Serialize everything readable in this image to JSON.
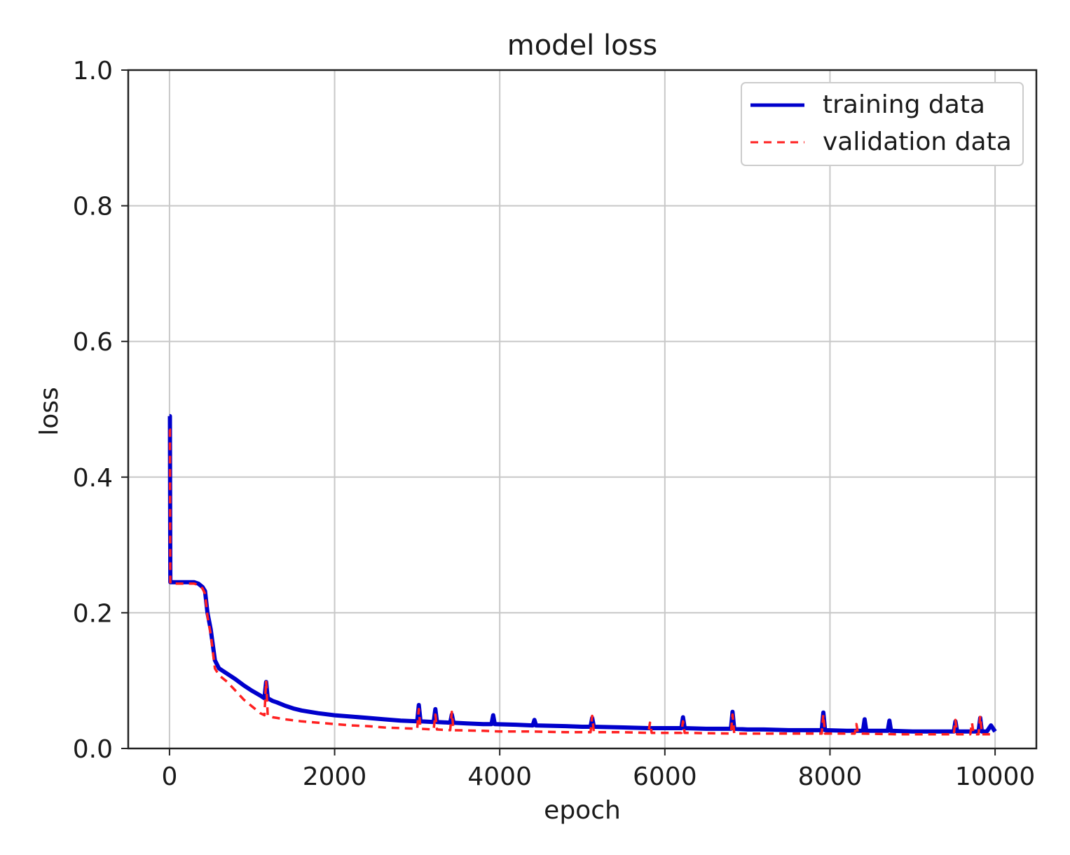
{
  "chart_data": {
    "type": "line",
    "title": "model loss",
    "xlabel": "epoch",
    "ylabel": "loss",
    "xlim": [
      -500,
      10500
    ],
    "ylim": [
      0.0,
      1.0
    ],
    "x_ticks": [
      0,
      2000,
      4000,
      6000,
      8000,
      10000
    ],
    "x_tick_labels": [
      "0",
      "2000",
      "4000",
      "6000",
      "8000",
      "10000"
    ],
    "y_ticks": [
      0.0,
      0.2,
      0.4,
      0.6,
      0.8,
      1.0
    ],
    "y_tick_labels": [
      "0.0",
      "0.2",
      "0.4",
      "0.6",
      "0.8",
      "1.0"
    ],
    "grid": true,
    "legend_position": "top-right",
    "series": [
      {
        "name": "training data",
        "color": "#0000cc",
        "style": "solid",
        "points": [
          [
            0,
            0.49
          ],
          [
            5,
            0.49
          ],
          [
            10,
            0.245
          ],
          [
            100,
            0.245
          ],
          [
            200,
            0.245
          ],
          [
            300,
            0.245
          ],
          [
            350,
            0.243
          ],
          [
            400,
            0.238
          ],
          [
            430,
            0.232
          ],
          [
            460,
            0.2
          ],
          [
            500,
            0.175
          ],
          [
            550,
            0.13
          ],
          [
            600,
            0.118
          ],
          [
            700,
            0.11
          ],
          [
            800,
            0.102
          ],
          [
            900,
            0.093
          ],
          [
            1000,
            0.085
          ],
          [
            1100,
            0.078
          ],
          [
            1150,
            0.074
          ],
          [
            1170,
            0.098
          ],
          [
            1190,
            0.074
          ],
          [
            1250,
            0.07
          ],
          [
            1300,
            0.068
          ],
          [
            1400,
            0.063
          ],
          [
            1500,
            0.059
          ],
          [
            1600,
            0.056
          ],
          [
            1800,
            0.052
          ],
          [
            2000,
            0.049
          ],
          [
            2200,
            0.047
          ],
          [
            2400,
            0.045
          ],
          [
            2600,
            0.043
          ],
          [
            2800,
            0.041
          ],
          [
            3000,
            0.04
          ],
          [
            3020,
            0.064
          ],
          [
            3040,
            0.04
          ],
          [
            3200,
            0.039
          ],
          [
            3220,
            0.058
          ],
          [
            3240,
            0.039
          ],
          [
            3400,
            0.038
          ],
          [
            3420,
            0.05
          ],
          [
            3440,
            0.038
          ],
          [
            3600,
            0.037
          ],
          [
            3800,
            0.036
          ],
          [
            3900,
            0.036
          ],
          [
            3920,
            0.049
          ],
          [
            3940,
            0.036
          ],
          [
            4200,
            0.035
          ],
          [
            4400,
            0.034
          ],
          [
            4420,
            0.042
          ],
          [
            4440,
            0.034
          ],
          [
            4800,
            0.033
          ],
          [
            5000,
            0.032
          ],
          [
            5100,
            0.032
          ],
          [
            5120,
            0.045
          ],
          [
            5140,
            0.032
          ],
          [
            5500,
            0.031
          ],
          [
            5800,
            0.03
          ],
          [
            6000,
            0.03
          ],
          [
            6200,
            0.03
          ],
          [
            6220,
            0.046
          ],
          [
            6240,
            0.03
          ],
          [
            6500,
            0.029
          ],
          [
            6800,
            0.029
          ],
          [
            6820,
            0.054
          ],
          [
            6840,
            0.029
          ],
          [
            7000,
            0.028
          ],
          [
            7200,
            0.028
          ],
          [
            7500,
            0.027
          ],
          [
            7900,
            0.027
          ],
          [
            7920,
            0.053
          ],
          [
            7940,
            0.027
          ],
          [
            8200,
            0.026
          ],
          [
            8400,
            0.026
          ],
          [
            8420,
            0.043
          ],
          [
            8440,
            0.026
          ],
          [
            8700,
            0.026
          ],
          [
            8720,
            0.041
          ],
          [
            8740,
            0.026
          ],
          [
            9000,
            0.025
          ],
          [
            9200,
            0.025
          ],
          [
            9500,
            0.025
          ],
          [
            9520,
            0.04
          ],
          [
            9540,
            0.025
          ],
          [
            9800,
            0.025
          ],
          [
            9820,
            0.045
          ],
          [
            9840,
            0.025
          ],
          [
            9900,
            0.025
          ],
          [
            9950,
            0.034
          ],
          [
            10000,
            0.025
          ]
        ]
      },
      {
        "name": "validation data",
        "color": "#ff2020",
        "style": "dashed",
        "points": [
          [
            0,
            0.47
          ],
          [
            5,
            0.47
          ],
          [
            10,
            0.243
          ],
          [
            100,
            0.243
          ],
          [
            200,
            0.243
          ],
          [
            300,
            0.243
          ],
          [
            350,
            0.241
          ],
          [
            400,
            0.236
          ],
          [
            430,
            0.228
          ],
          [
            460,
            0.195
          ],
          [
            500,
            0.168
          ],
          [
            550,
            0.118
          ],
          [
            600,
            0.108
          ],
          [
            700,
            0.098
          ],
          [
            800,
            0.085
          ],
          [
            900,
            0.072
          ],
          [
            1000,
            0.062
          ],
          [
            1100,
            0.052
          ],
          [
            1150,
            0.049
          ],
          [
            1170,
            0.1
          ],
          [
            1190,
            0.048
          ],
          [
            1250,
            0.046
          ],
          [
            1300,
            0.045
          ],
          [
            1400,
            0.043
          ],
          [
            1600,
            0.04
          ],
          [
            1800,
            0.038
          ],
          [
            2000,
            0.036
          ],
          [
            2200,
            0.034
          ],
          [
            2400,
            0.033
          ],
          [
            2600,
            0.031
          ],
          [
            2800,
            0.03
          ],
          [
            3000,
            0.029
          ],
          [
            3020,
            0.058
          ],
          [
            3040,
            0.029
          ],
          [
            3200,
            0.028
          ],
          [
            3220,
            0.05
          ],
          [
            3240,
            0.028
          ],
          [
            3400,
            0.027
          ],
          [
            3420,
            0.054
          ],
          [
            3440,
            0.027
          ],
          [
            3800,
            0.026
          ],
          [
            4000,
            0.025
          ],
          [
            4400,
            0.025
          ],
          [
            4800,
            0.024
          ],
          [
            5100,
            0.024
          ],
          [
            5120,
            0.048
          ],
          [
            5140,
            0.024
          ],
          [
            5500,
            0.024
          ],
          [
            5800,
            0.023
          ],
          [
            5820,
            0.038
          ],
          [
            5840,
            0.023
          ],
          [
            6200,
            0.023
          ],
          [
            6220,
            0.04
          ],
          [
            6240,
            0.023
          ],
          [
            6800,
            0.022
          ],
          [
            6820,
            0.05
          ],
          [
            6840,
            0.022
          ],
          [
            7200,
            0.022
          ],
          [
            7600,
            0.022
          ],
          [
            7900,
            0.022
          ],
          [
            7920,
            0.05
          ],
          [
            7940,
            0.022
          ],
          [
            8300,
            0.022
          ],
          [
            8320,
            0.036
          ],
          [
            8340,
            0.022
          ],
          [
            8800,
            0.021
          ],
          [
            9200,
            0.021
          ],
          [
            9500,
            0.021
          ],
          [
            9520,
            0.042
          ],
          [
            9540,
            0.021
          ],
          [
            9700,
            0.021
          ],
          [
            9720,
            0.038
          ],
          [
            9740,
            0.021
          ],
          [
            9800,
            0.021
          ],
          [
            9820,
            0.048
          ],
          [
            9840,
            0.021
          ],
          [
            10000,
            0.021
          ]
        ]
      }
    ]
  }
}
